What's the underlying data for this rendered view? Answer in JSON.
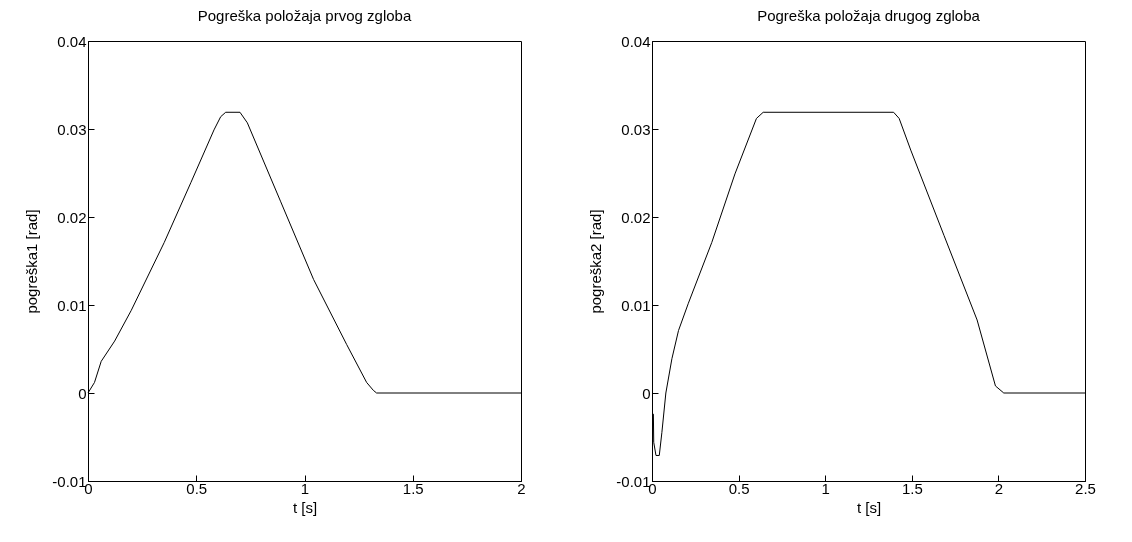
{
  "chart_data": [
    {
      "type": "line",
      "title": "Pogreška položaja prvog zgloba",
      "xlabel": "t [s]",
      "ylabel": "pogreška1 [rad]",
      "color": "#000000",
      "xlim": [
        0,
        2
      ],
      "ylim": [
        -0.01,
        0.04
      ],
      "xticks": [
        0,
        0.5,
        1,
        1.5,
        2
      ],
      "yticks": [
        -0.01,
        0,
        0.01,
        0.02,
        0.03,
        0.04
      ],
      "x": [
        0,
        0.03,
        0.061,
        0.123,
        0.2,
        0.352,
        0.475,
        0.582,
        0.613,
        0.636,
        0.702,
        0.736,
        0.889,
        1.042,
        1.195,
        1.287,
        1.318,
        1.333,
        2
      ],
      "values": [
        0,
        0.0012,
        0.0036,
        0.0059,
        0.0094,
        0.0171,
        0.0239,
        0.0299,
        0.0314,
        0.0319,
        0.0319,
        0.0307,
        0.0218,
        0.0129,
        0.0055,
        0.0012,
        0.0003,
        0,
        0
      ]
    },
    {
      "type": "line",
      "title": "Pogreška položaja drugog zgloba",
      "xlabel": "t [s]",
      "ylabel": "pogreška2 [rad]",
      "color": "#000000",
      "xlim": [
        0,
        2.5
      ],
      "ylim": [
        -0.01,
        0.04
      ],
      "xticks": [
        0,
        0.5,
        1,
        1.5,
        2,
        2.5
      ],
      "yticks": [
        -0.01,
        0,
        0.01,
        0.02,
        0.03,
        0.04
      ],
      "x": [
        0,
        0.008,
        0.01,
        0.023,
        0.042,
        0.057,
        0.08,
        0.115,
        0.153,
        0.21,
        0.345,
        0.479,
        0.603,
        0.642,
        1.395,
        1.427,
        1.494,
        1.686,
        1.877,
        1.983,
        2.031,
        2.5
      ],
      "values": [
        -0.0024,
        -0.0024,
        -0.0056,
        -0.0071,
        -0.0071,
        -0.0045,
        0,
        0.0039,
        0.0071,
        0.0102,
        0.0171,
        0.0249,
        0.0312,
        0.0319,
        0.0319,
        0.0312,
        0.0276,
        0.0179,
        0.0083,
        0.0008,
        0,
        0
      ]
    }
  ]
}
